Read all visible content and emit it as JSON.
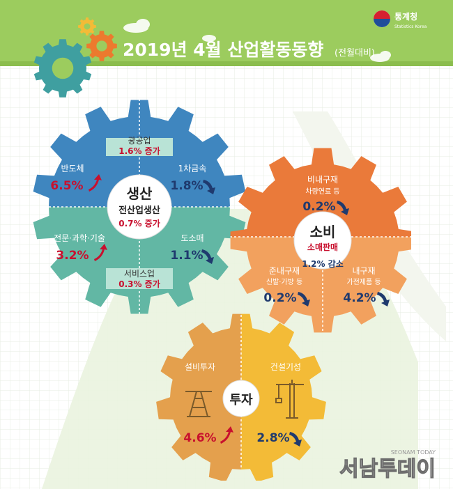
{
  "header": {
    "title": "2019년 4월 산업활동동향",
    "subtitle": "(전월대비)",
    "logo_text": "통계청",
    "logo_subtext": "Statistics Korea"
  },
  "production": {
    "title": "생산",
    "total_label": "전산업생산",
    "total_value": "0.7% 증가",
    "mining": {
      "label": "광공업",
      "value": "1.6% 증가"
    },
    "services": {
      "label": "서비스업",
      "value": "0.3% 증가"
    },
    "semiconductor": {
      "label": "반도체",
      "value": "6.5%"
    },
    "primary_metal": {
      "label": "1차금속",
      "value": "1.8%"
    },
    "professional": {
      "label": "전문·과학·기술",
      "value": "3.2%"
    },
    "wholesale": {
      "label": "도소매",
      "value": "1.1%"
    }
  },
  "consumption": {
    "title": "소비",
    "total_label": "소매판매",
    "total_value": "1.2% 감소",
    "nondurable": {
      "label": "비내구재",
      "sub": "차량연료 등",
      "value": "0.2%"
    },
    "semidurable": {
      "label": "준내구재",
      "sub": "신발·가방 등",
      "value": "0.2%"
    },
    "durable": {
      "label": "내구재",
      "sub": "가전제품 등",
      "value": "4.2%"
    }
  },
  "investment": {
    "title": "투자",
    "facility": {
      "label": "설비투자",
      "value": "4.6%"
    },
    "construction": {
      "label": "건설기성",
      "value": "2.8%"
    }
  },
  "watermark": {
    "text": "서남투데이",
    "subtext": "SEONAM TODAY"
  },
  "colors": {
    "banner": "#9ccc5e",
    "prod_top": "#3f86bf",
    "prod_bottom": "#62b7a4",
    "cons_top": "#ea7a3a",
    "cons_bottom": "#f2a15e",
    "inv_left": "#e4a04d",
    "inv_right": "#f3bb37",
    "increase": "#c8102e",
    "decrease": "#1f4e9a"
  }
}
